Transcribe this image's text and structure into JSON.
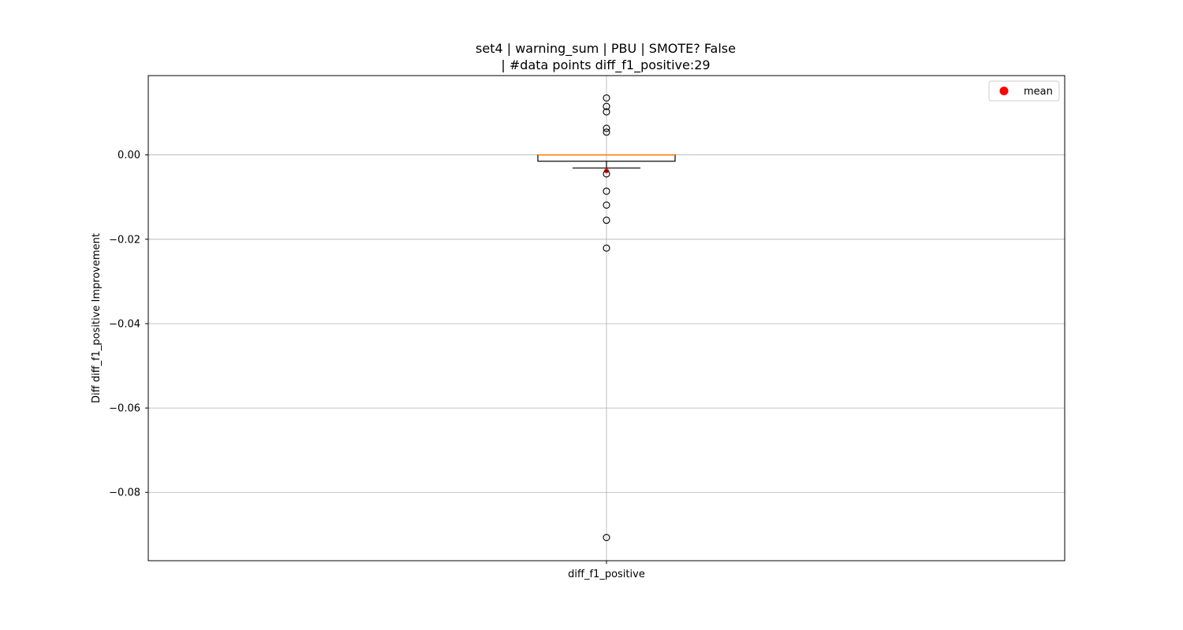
{
  "chart_data": {
    "type": "box",
    "title_line1": "set4 | warning_sum | PBU | SMOTE? False",
    "title_line2": "| #data points diff_f1_positive:29",
    "xlabel": "",
    "ylabel": "Diff diff_f1_positive Improvement",
    "categories": [
      "diff_f1_positive"
    ],
    "ylim": [
      -0.0962,
      0.0188
    ],
    "yticks": [
      0.0,
      -0.02,
      -0.04,
      -0.06,
      -0.08
    ],
    "ytick_labels": [
      "0.00",
      "−0.02",
      "−0.04",
      "−0.06",
      "−0.08"
    ],
    "grid": true,
    "legend": {
      "position": "top-right",
      "entries": [
        {
          "label": "mean",
          "color": "#ff0000"
        }
      ]
    },
    "box": {
      "q1": -0.0015,
      "median": 0.0,
      "q3": 0.0,
      "whisker_low": -0.0031,
      "whisker_high": 0.0
    },
    "mean": -0.0038,
    "outliers": [
      0.0135,
      0.0115,
      0.0102,
      0.0063,
      0.0054,
      -0.0045,
      -0.0086,
      -0.0119,
      -0.0155,
      -0.0221,
      -0.0907
    ],
    "colors": {
      "median": "#ff7f0e",
      "mean": "#ff0000",
      "box": "#000000",
      "grid": "#b0b0b0"
    }
  }
}
